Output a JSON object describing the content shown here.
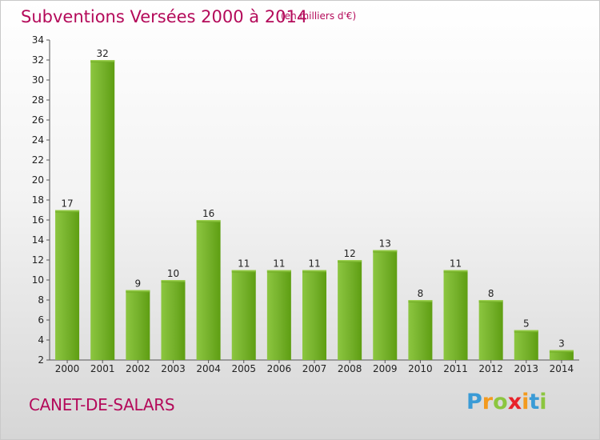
{
  "header": {
    "title": "Subventions Versées 2000 à 2014",
    "subtitle": "(en milliers d'€)"
  },
  "footer": {
    "commune": "CANET-DE-SALARS",
    "logo_letters": [
      {
        "char": "P",
        "color": "#3a9bd6"
      },
      {
        "char": "r",
        "color": "#f39a1e"
      },
      {
        "char": "o",
        "color": "#8cc63f"
      },
      {
        "char": "x",
        "color": "#e8232a"
      },
      {
        "char": "i",
        "color": "#f39a1e"
      },
      {
        "char": "t",
        "color": "#3a9bd6"
      },
      {
        "char": "i",
        "color": "#8cc63f"
      }
    ]
  },
  "colors": {
    "accent": "#b40a5a",
    "bar_light": "#9bd24a",
    "bar_dark": "#5e9e12",
    "axis": "#555555"
  },
  "chart_data": {
    "type": "bar",
    "title": "Subventions Versées 2000 à 2014",
    "subtitle": "(en milliers d'€)",
    "categories": [
      "2000",
      "2001",
      "2002",
      "2003",
      "2004",
      "2005",
      "2006",
      "2007",
      "2008",
      "2009",
      "2010",
      "2011",
      "2012",
      "2013",
      "2014"
    ],
    "values": [
      17,
      32,
      9,
      10,
      16,
      11,
      11,
      11,
      12,
      13,
      8,
      11,
      8,
      5,
      3
    ],
    "ylim": [
      2,
      34
    ],
    "yticks": [
      2,
      4,
      6,
      8,
      10,
      12,
      14,
      16,
      18,
      20,
      22,
      24,
      26,
      28,
      30,
      32,
      34
    ],
    "grid": false,
    "legend": "none"
  }
}
